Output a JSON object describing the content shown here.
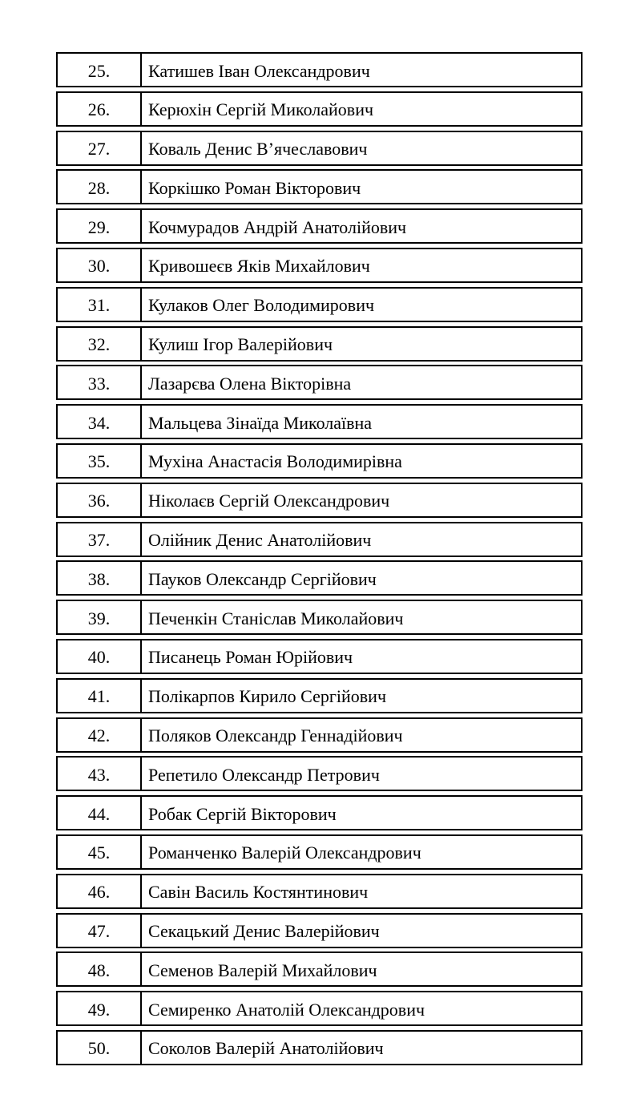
{
  "document": {
    "type": "numbered-name-list",
    "language": "uk",
    "rows": [
      {
        "num": "25.",
        "name": "Катишев Іван Олександрович"
      },
      {
        "num": "26.",
        "name": "Керюхін Сергій Миколайович"
      },
      {
        "num": "27.",
        "name": "Коваль Денис В’ячеславович"
      },
      {
        "num": "28.",
        "name": "Коркішко Роман Вікторович"
      },
      {
        "num": "29.",
        "name": "Кочмурадов Андрій Анатолійович"
      },
      {
        "num": "30.",
        "name": "Кривошеєв Яків Михайлович"
      },
      {
        "num": "31.",
        "name": "Кулаков Олег Володимирович"
      },
      {
        "num": "32.",
        "name": "Кулиш Ігор Валерійович"
      },
      {
        "num": "33.",
        "name": "Лазарєва Олена Вікторівна"
      },
      {
        "num": "34.",
        "name": "Мальцева Зінаїда Миколаївна"
      },
      {
        "num": "35.",
        "name": "Мухіна Анастасія Володимирівна"
      },
      {
        "num": "36.",
        "name": "Ніколаєв Сергій Олександрович"
      },
      {
        "num": "37.",
        "name": "Олійник Денис Анатолійович"
      },
      {
        "num": "38.",
        "name": "Пауков Олександр Сергійович"
      },
      {
        "num": "39.",
        "name": "Печенкін Станіслав Миколайович"
      },
      {
        "num": "40.",
        "name": "Писанець Роман Юрійович"
      },
      {
        "num": "41.",
        "name": "Полікарпов Кирило Сергійович"
      },
      {
        "num": "42.",
        "name": "Поляков Олександр Геннадійович"
      },
      {
        "num": "43.",
        "name": "Репетило Олександр Петрович"
      },
      {
        "num": "44.",
        "name": "Робак Сергій Вікторович"
      },
      {
        "num": "45.",
        "name": "Романченко Валерій Олександрович"
      },
      {
        "num": "46.",
        "name": "Савін Василь Костянтинович"
      },
      {
        "num": "47.",
        "name": "Секацький Денис Валерійович"
      },
      {
        "num": "48.",
        "name": "Семенов Валерій Михайлович"
      },
      {
        "num": "49.",
        "name": "Семиренко Анатолій Олександрович"
      },
      {
        "num": "50.",
        "name": "Соколов Валерій Анатолійович"
      }
    ]
  },
  "colors": {
    "border": "#000000",
    "text": "#000000",
    "background": "#ffffff"
  }
}
